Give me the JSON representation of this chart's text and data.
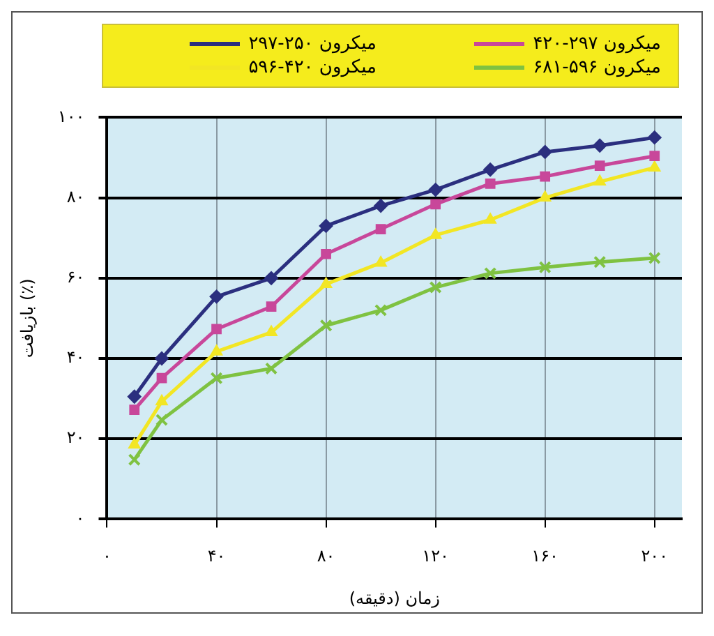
{
  "chart_data": {
    "type": "line",
    "xlabel": "زمان (دقیقه)",
    "ylabel": "بازیافت (٪)",
    "x": [
      10,
      20,
      40,
      60,
      80,
      100,
      120,
      140,
      160,
      180,
      200
    ],
    "series": [
      {
        "name": "میکرون ۲۵۰-۲۹۷",
        "color": "#2b2f7f",
        "marker": "diamond",
        "values": [
          30.5,
          40,
          55.4,
          60,
          73,
          78,
          82,
          87,
          91.4,
          93,
          95
        ]
      },
      {
        "name": "میکرون ۲۹۷-۴۲۰",
        "color": "#c8479a",
        "marker": "square",
        "values": [
          27.2,
          35.1,
          47.3,
          52.9,
          66,
          72.2,
          78.4,
          83.5,
          85.3,
          88,
          90.4
        ]
      },
      {
        "name": "میکرون ۴۲۰-۵۹۶",
        "color": "#f2e624",
        "marker": "triangle",
        "values": [
          18.5,
          29.3,
          41.7,
          46.5,
          58.5,
          63.8,
          70.7,
          74.5,
          80,
          84,
          87.5
        ]
      },
      {
        "name": "میکرون ۵۹۶-۶۸۱",
        "color": "#7fc241",
        "marker": "cross",
        "values": [
          14.8,
          24.7,
          35.1,
          37.5,
          48.2,
          52,
          57.7,
          61.2,
          62.7,
          64,
          65
        ]
      }
    ],
    "xlim": [
      0,
      210
    ],
    "xticks": [
      {
        "value": 0,
        "label": "۰"
      },
      {
        "value": 40,
        "label": "۴۰"
      },
      {
        "value": 80,
        "label": "۸۰"
      },
      {
        "value": 120,
        "label": "۱۲۰"
      },
      {
        "value": 160,
        "label": "۱۶۰"
      },
      {
        "value": 200,
        "label": "۲۰۰"
      }
    ],
    "ylim": [
      0,
      100
    ],
    "yticks": [
      {
        "value": 0,
        "label": "۰"
      },
      {
        "value": 20,
        "label": "۲۰"
      },
      {
        "value": 40,
        "label": "۴۰"
      },
      {
        "value": 60,
        "label": "۶۰"
      },
      {
        "value": 80,
        "label": "۸۰"
      },
      {
        "value": 100,
        "label": "۱۰۰"
      }
    ],
    "grid": true,
    "legend": "top",
    "line_style": "solid"
  }
}
